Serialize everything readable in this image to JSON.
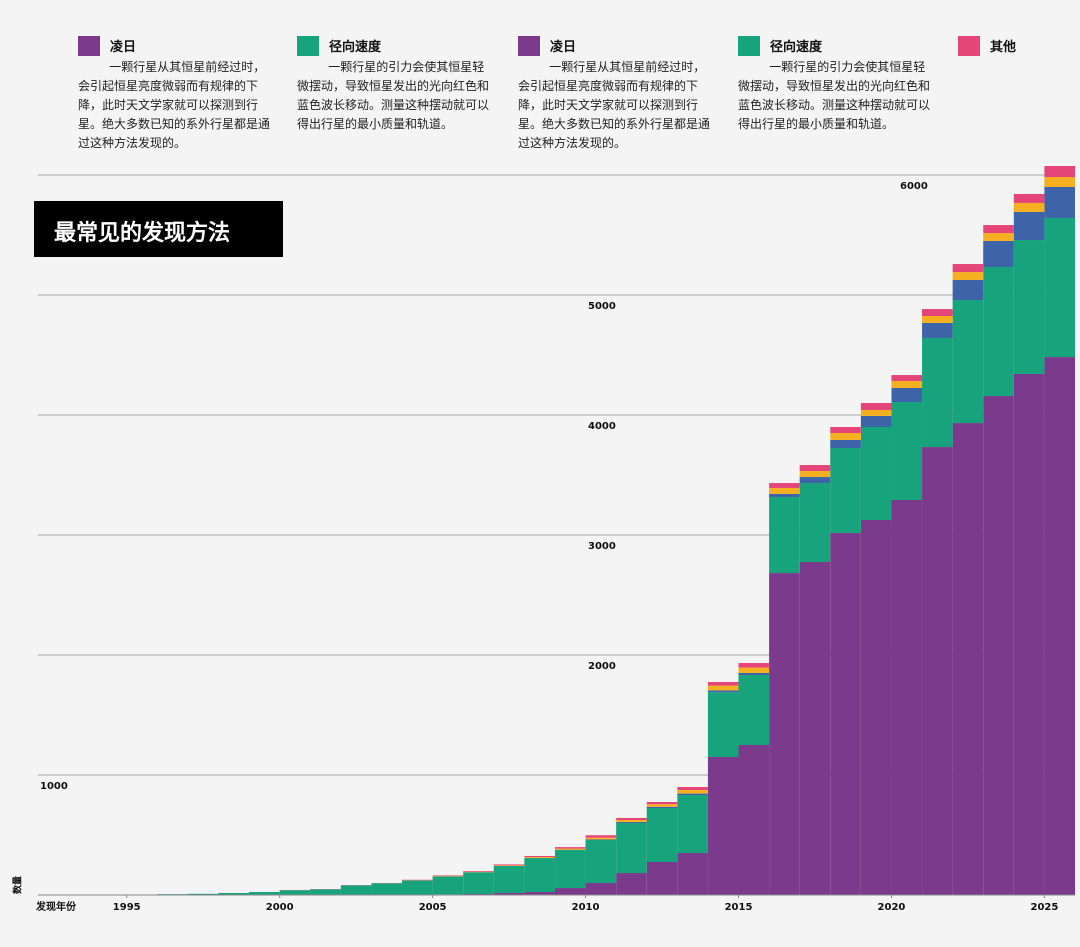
{
  "chart_data": {
    "type": "stacked_bar",
    "title": "最常见的发现方法",
    "x_label": "发现年份",
    "y_label": "数量",
    "x": [
      1995,
      1996,
      1997,
      1998,
      1999,
      2000,
      2001,
      2002,
      2003,
      2004,
      2005,
      2006,
      2007,
      2008,
      2009,
      2010,
      2011,
      2012,
      2013,
      2014,
      2015,
      2016,
      2017,
      2018,
      2019,
      2020,
      2021,
      2022,
      2023,
      2024,
      2025
    ],
    "xlim": [
      1992.1,
      2026
    ],
    "xticks": [
      1995,
      2000,
      2005,
      2010,
      2015,
      2020,
      2025
    ],
    "ylim": [
      0,
      6100
    ],
    "yticks": [
      1000,
      2000,
      3000,
      4000,
      5000,
      6000
    ],
    "grid": true,
    "series": [
      {
        "color": "#7b3a8c",
        "values": [
          0,
          0,
          0,
          0,
          0,
          0,
          0,
          1,
          2,
          3,
          5,
          8,
          17,
          25,
          58,
          100,
          183,
          275,
          350,
          1150,
          1250,
          2683,
          2775,
          3017,
          3125,
          3292,
          3733,
          3933,
          4158,
          4342,
          4483
        ]
      },
      {
        "color": "#17a37b",
        "values": [
          3,
          7,
          10,
          17,
          25,
          40,
          48,
          80,
          96,
          118,
          150,
          182,
          225,
          283,
          317,
          358,
          417,
          450,
          483,
          540,
          583,
          634,
          658,
          708,
          775,
          816,
          909,
          1025,
          1075,
          1116,
          1159
        ]
      },
      {
        "color": "#3d63a8",
        "values": [
          0,
          0,
          0,
          0,
          0,
          0,
          0,
          0,
          0,
          0,
          0,
          0,
          0,
          0,
          2,
          5,
          8,
          10,
          12,
          15,
          17,
          25,
          50,
          67,
          92,
          117,
          125,
          167,
          217,
          234,
          258
        ]
      },
      {
        "color": "#f5b021",
        "values": [
          0,
          0,
          0,
          0,
          0,
          0,
          0,
          0,
          0,
          2,
          3,
          4,
          5,
          8,
          10,
          15,
          17,
          22,
          30,
          40,
          45,
          50,
          50,
          58,
          50,
          58,
          58,
          66,
          66,
          75,
          83
        ]
      },
      {
        "color": "#e6457a",
        "values": [
          0,
          0,
          0,
          0,
          0,
          2,
          2,
          2,
          2,
          4,
          5,
          6,
          8,
          9,
          12,
          20,
          17,
          18,
          25,
          30,
          38,
          41,
          50,
          50,
          58,
          50,
          58,
          67,
          67,
          75,
          92
        ]
      }
    ],
    "legend": [
      {
        "label": "凌日",
        "color": "#7b3a8c",
        "text": "一颗行星从其恒星前经过时，会引起恒星亮度微弱而有规律的下降，此时天文学家就可以探测到行星。绝大多数已知的系外行星都是通过这种方法发现的。"
      },
      {
        "label": "径向速度",
        "color": "#17a37b",
        "text": "一颗行星的引力会使其恒星轻微摆动，导致恒星发出的光向红色和蓝色波长移动。测量这种摆动就可以得出行星的最小质量和轨道。"
      },
      {
        "label": "凌日",
        "color": "#7b3a8c",
        "text": "一颗行星从其恒星前经过时，会引起恒星亮度微弱而有规律的下降，此时天文学家就可以探测到行星。绝大多数已知的系外行星都是通过这种方法发现的。"
      },
      {
        "label": "径向速度",
        "color": "#17a37b",
        "text": "一颗行星的引力会使其恒星轻微摆动，导致恒星发出的光向红色和蓝色波长移动。测量这种摆动就可以得出行星的最小质量和轨道。"
      },
      {
        "label": "其他",
        "color": "#e6457a"
      }
    ]
  }
}
